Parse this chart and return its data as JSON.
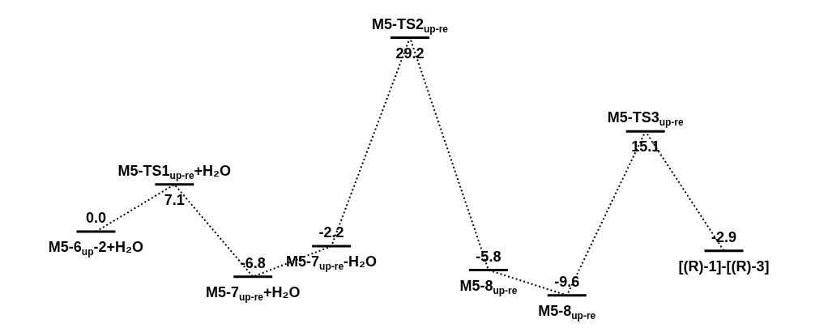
{
  "chart_data": {
    "type": "line",
    "line_style": "dotted",
    "color": "#000000",
    "categories": [
      "M5-6$_{up}$-2+H₂O",
      "M5-TS1$_{up-re}$+H₂O",
      "M5-7$_{up-re}$+H₂O",
      "M5-7$_{up-re}$-H₂O",
      "M5-TS2$_{up-re}$",
      "M5-8$_{up-re}$",
      "M5-8$_{up-re}$",
      "M5-TS3$_{up-re}$",
      "[(R)-1]-[(R)-3]"
    ],
    "values": [
      0,
      7.1,
      -6.8,
      -2.2,
      29.2,
      -5.8,
      -9.6,
      15.1,
      -2.9
    ],
    "value_labels": [
      "0.0",
      "7.1",
      "-6.8",
      "-2.2",
      "29.2",
      "-5.8",
      "-9.6",
      "15.1",
      "-2.9"
    ]
  }
}
